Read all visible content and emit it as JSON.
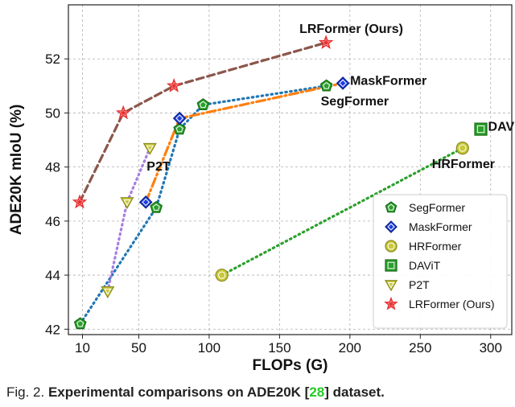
{
  "chart_data": {
    "type": "line",
    "xlabel": "FLOPs (G)",
    "ylabel": "ADE20K mIoU (%)",
    "xlim": [
      0,
      315
    ],
    "ylim": [
      41.8,
      54.0
    ],
    "xticks": [
      10,
      50,
      100,
      150,
      200,
      250,
      300
    ],
    "yticks": [
      42,
      44,
      46,
      48,
      50,
      52
    ],
    "grid": true,
    "legend_position": "bottom-right",
    "series": [
      {
        "name": "SegFormer",
        "color": "#2ca02c",
        "line_color": "#1f77b4",
        "line_style": "dotted",
        "marker": "pentagon",
        "points": [
          [
            8.4,
            42.2
          ],
          [
            62.4,
            46.5
          ],
          [
            79.0,
            49.4
          ],
          [
            95.7,
            50.3
          ],
          [
            183.3,
            51.0
          ]
        ]
      },
      {
        "name": "MaskFormer",
        "color": "#1e3fdc",
        "line_color": "#ff7f0e",
        "line_style": "dashdot",
        "marker": "diamond",
        "points": [
          [
            55,
            46.7
          ],
          [
            79,
            49.8
          ],
          [
            195,
            51.1
          ]
        ]
      },
      {
        "name": "HRFormer",
        "color": "#c8c83a",
        "line_color": "#2ca02c",
        "line_style": "dotted",
        "marker": "circle",
        "points": [
          [
            109,
            44.0
          ],
          [
            280,
            48.7
          ]
        ]
      },
      {
        "name": "DAViT",
        "color": "#2ca02c",
        "line_color": "none",
        "line_style": "none",
        "marker": "square",
        "points": [
          [
            293,
            49.4
          ]
        ]
      },
      {
        "name": "P2T",
        "color": "#c8c83a",
        "line_color": "#a77ee0",
        "line_style": "dotted",
        "marker": "triangle-down",
        "points": [
          [
            27.9,
            43.4
          ],
          [
            41.7,
            46.7
          ],
          [
            57.9,
            48.7
          ]
        ]
      },
      {
        "name": "LRFormer (Ours)",
        "color": "#e83030",
        "line_color": "#8c564b",
        "line_style": "dashed",
        "marker": "star",
        "points": [
          [
            8,
            46.7
          ],
          [
            39,
            50.0
          ],
          [
            75,
            51.0
          ],
          [
            183,
            52.6
          ]
        ]
      }
    ],
    "annotations": [
      {
        "text": "LRFormer (Ours)",
        "x": 183,
        "y": 52.6
      },
      {
        "text": "MaskFormer",
        "x": 195,
        "y": 51.1
      },
      {
        "text": "SegFormer",
        "x": 183.3,
        "y": 51.0
      },
      {
        "text": "DAViT",
        "x": 293,
        "y": 49.4
      },
      {
        "text": "HRFormer",
        "x": 280,
        "y": 48.7
      },
      {
        "text": "P2T",
        "x": 57.9,
        "y": 48.7
      }
    ]
  },
  "caption": {
    "prefix": "Fig. 2. ",
    "bold_main": "Experimental comparisons on ADE20K [",
    "ref": "28",
    "bold_end": "] dataset."
  }
}
